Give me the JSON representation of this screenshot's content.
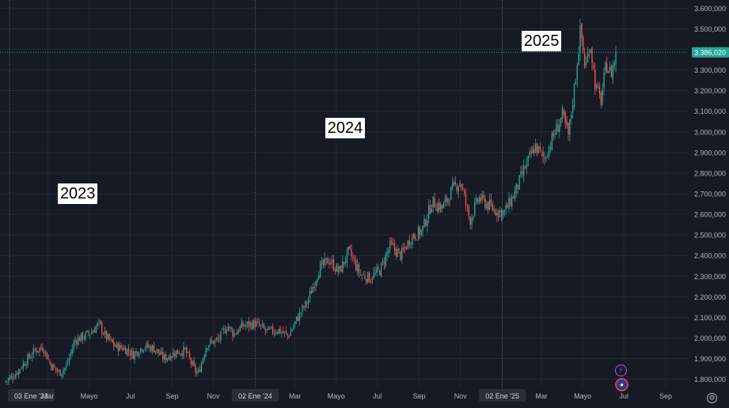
{
  "chart_data": {
    "type": "candlestick",
    "title": "",
    "xlabel": "",
    "ylabel": "",
    "ylim": [
      1760000,
      3640000
    ],
    "y_ticks": [
      "1.800,000",
      "1.900,000",
      "2.000,000",
      "2.100,000",
      "2.200,000",
      "2.300,000",
      "2.400,000",
      "2.500,000",
      "2.600,000",
      "2.700,000",
      "2.800,000",
      "2.900,000",
      "3.000,000",
      "3.100,000",
      "3.200,000",
      "3.300,000",
      "3.400,000",
      "3.500,000",
      "3.600,000"
    ],
    "x_ticks": [
      {
        "label": "03 Ene '23",
        "date": "2023-01-03",
        "highlight": true
      },
      {
        "label": "Mar",
        "date": "2023-03-01"
      },
      {
        "label": "Mayo",
        "date": "2023-05-01"
      },
      {
        "label": "Jul",
        "date": "2023-07-01"
      },
      {
        "label": "Sep",
        "date": "2023-09-01"
      },
      {
        "label": "Nov",
        "date": "2023-11-01"
      },
      {
        "label": "02 Ene '24",
        "date": "2024-01-02",
        "highlight": true
      },
      {
        "label": "Mar",
        "date": "2024-03-01"
      },
      {
        "label": "Mayo",
        "date": "2024-05-01"
      },
      {
        "label": "Jul",
        "date": "2024-07-01"
      },
      {
        "label": "Sep",
        "date": "2024-09-01"
      },
      {
        "label": "Nov",
        "date": "2024-11-01"
      },
      {
        "label": "02 Ene '25",
        "date": "2025-01-02",
        "highlight": true
      },
      {
        "label": "Mar",
        "date": "2025-03-01"
      },
      {
        "label": "Mayo",
        "date": "2025-05-01"
      },
      {
        "label": "Jul",
        "date": "2025-07-01"
      },
      {
        "label": "Sep",
        "date": "2025-09-01"
      }
    ],
    "year_separators": [
      "2023-01-03",
      "2024-01-02",
      "2025-01-02"
    ],
    "current_price": 3386020,
    "current_price_label": "3.386,020",
    "series": [
      {
        "name": "",
        "points": [
          {
            "date": "2022-12-28",
            "close": 1790000
          },
          {
            "date": "2023-01-10",
            "close": 1820000
          },
          {
            "date": "2023-01-25",
            "close": 1880000
          },
          {
            "date": "2023-02-10",
            "close": 1940000
          },
          {
            "date": "2023-02-22",
            "close": 1955000
          },
          {
            "date": "2023-03-05",
            "close": 1870000
          },
          {
            "date": "2023-03-18",
            "close": 1830000
          },
          {
            "date": "2023-03-28",
            "close": 1860000
          },
          {
            "date": "2023-04-10",
            "close": 1990000
          },
          {
            "date": "2023-04-25",
            "close": 2010000
          },
          {
            "date": "2023-05-05",
            "close": 2030000
          },
          {
            "date": "2023-05-15",
            "close": 2070000
          },
          {
            "date": "2023-05-25",
            "close": 2010000
          },
          {
            "date": "2023-06-08",
            "close": 1960000
          },
          {
            "date": "2023-06-22",
            "close": 1950000
          },
          {
            "date": "2023-07-05",
            "close": 1920000
          },
          {
            "date": "2023-07-20",
            "close": 1960000
          },
          {
            "date": "2023-08-05",
            "close": 1950000
          },
          {
            "date": "2023-08-20",
            "close": 1900000
          },
          {
            "date": "2023-09-05",
            "close": 1930000
          },
          {
            "date": "2023-09-20",
            "close": 1940000
          },
          {
            "date": "2023-10-05",
            "close": 1840000
          },
          {
            "date": "2023-10-10",
            "close": 1830000
          },
          {
            "date": "2023-10-22",
            "close": 1970000
          },
          {
            "date": "2023-11-08",
            "close": 1990000
          },
          {
            "date": "2023-11-22",
            "close": 2060000
          },
          {
            "date": "2023-12-01",
            "close": 2020000
          },
          {
            "date": "2023-12-15",
            "close": 2060000
          },
          {
            "date": "2024-01-02",
            "close": 2070000
          },
          {
            "date": "2024-01-20",
            "close": 2030000
          },
          {
            "date": "2024-02-05",
            "close": 2040000
          },
          {
            "date": "2024-02-20",
            "close": 2010000
          },
          {
            "date": "2024-03-05",
            "close": 2100000
          },
          {
            "date": "2024-03-20",
            "close": 2180000
          },
          {
            "date": "2024-04-05",
            "close": 2330000
          },
          {
            "date": "2024-04-20",
            "close": 2380000
          },
          {
            "date": "2024-05-05",
            "close": 2320000
          },
          {
            "date": "2024-05-20",
            "close": 2420000
          },
          {
            "date": "2024-06-05",
            "close": 2310000
          },
          {
            "date": "2024-06-20",
            "close": 2290000
          },
          {
            "date": "2024-07-05",
            "close": 2330000
          },
          {
            "date": "2024-07-20",
            "close": 2450000
          },
          {
            "date": "2024-08-05",
            "close": 2400000
          },
          {
            "date": "2024-08-20",
            "close": 2490000
          },
          {
            "date": "2024-09-05",
            "close": 2520000
          },
          {
            "date": "2024-09-20",
            "close": 2660000
          },
          {
            "date": "2024-10-05",
            "close": 2630000
          },
          {
            "date": "2024-10-20",
            "close": 2720000
          },
          {
            "date": "2024-11-01",
            "close": 2760000
          },
          {
            "date": "2024-11-15",
            "close": 2570000
          },
          {
            "date": "2024-11-28",
            "close": 2680000
          },
          {
            "date": "2024-12-10",
            "close": 2650000
          },
          {
            "date": "2024-12-22",
            "close": 2620000
          },
          {
            "date": "2025-01-05",
            "close": 2610000
          },
          {
            "date": "2025-01-20",
            "close": 2700000
          },
          {
            "date": "2025-02-05",
            "close": 2830000
          },
          {
            "date": "2025-02-20",
            "close": 2930000
          },
          {
            "date": "2025-03-05",
            "close": 2870000
          },
          {
            "date": "2025-03-20",
            "close": 2990000
          },
          {
            "date": "2025-04-01",
            "close": 3080000
          },
          {
            "date": "2025-04-10",
            "close": 2980000
          },
          {
            "date": "2025-04-20",
            "close": 3250000
          },
          {
            "date": "2025-04-28",
            "close": 3500000
          },
          {
            "date": "2025-05-05",
            "close": 3300000
          },
          {
            "date": "2025-05-12",
            "close": 3440000
          },
          {
            "date": "2025-05-20",
            "close": 3220000
          },
          {
            "date": "2025-05-28",
            "close": 3150000
          },
          {
            "date": "2025-06-05",
            "close": 3330000
          },
          {
            "date": "2025-06-12",
            "close": 3280000
          },
          {
            "date": "2025-06-20",
            "close": 3386020
          }
        ]
      }
    ],
    "annotations": [
      {
        "text": "2023",
        "date": "2023-04-15",
        "price": 2700000
      },
      {
        "text": "2024",
        "date": "2024-05-15",
        "price": 3020000
      },
      {
        "text": "2025",
        "date": "2025-03-02",
        "price": 3440000
      }
    ],
    "colors": {
      "background": "#161a25",
      "grid": "#232733",
      "up": "#26a69a",
      "down": "#ef5350",
      "axis_text": "#b2b5be",
      "price_label": "#26a69a",
      "separator": "#5d606b"
    }
  },
  "icons": {
    "lightning": "lightning-icon",
    "flag": "us-flag-icon",
    "settings": "gear-icon"
  }
}
